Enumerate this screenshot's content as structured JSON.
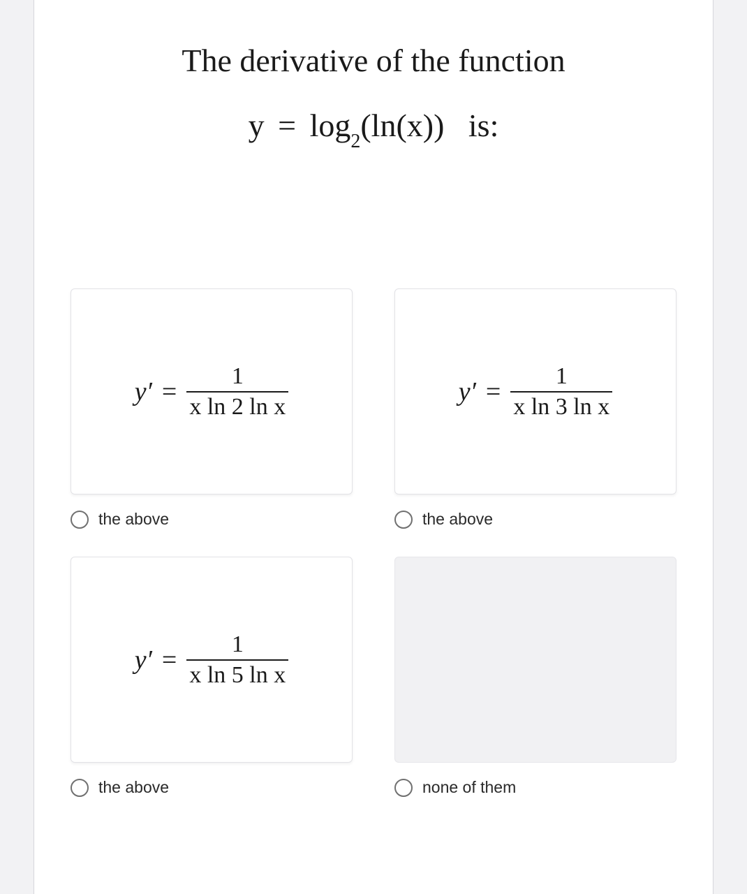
{
  "background_color": "#f2f2f4",
  "card_border_color": "#e2e2e6",
  "radio_border_color": "#707070",
  "text_color": "#1a1a1a",
  "question": {
    "line1": "The derivative of the function",
    "equation_lhs": "y",
    "equation_eq": "=",
    "equation_rhs_log": "log",
    "equation_rhs_base": "2",
    "equation_rhs_arg": "(ln(x))",
    "equation_tail": "is:",
    "fontsize": 46
  },
  "options": [
    {
      "has_expr": true,
      "lhs": "y′",
      "eq": "=",
      "numerator": "1",
      "denominator": "x ln 2 ln x",
      "radio_label": "the above",
      "selected": false
    },
    {
      "has_expr": true,
      "lhs": "y′",
      "eq": "=",
      "numerator": "1",
      "denominator": "x ln 3 ln x",
      "radio_label": "the above",
      "selected": false
    },
    {
      "has_expr": true,
      "lhs": "y′",
      "eq": "=",
      "numerator": "1",
      "denominator": "x ln 5 ln x",
      "radio_label": "the above",
      "selected": false
    },
    {
      "has_expr": false,
      "radio_label": "none of them",
      "selected": false
    }
  ]
}
